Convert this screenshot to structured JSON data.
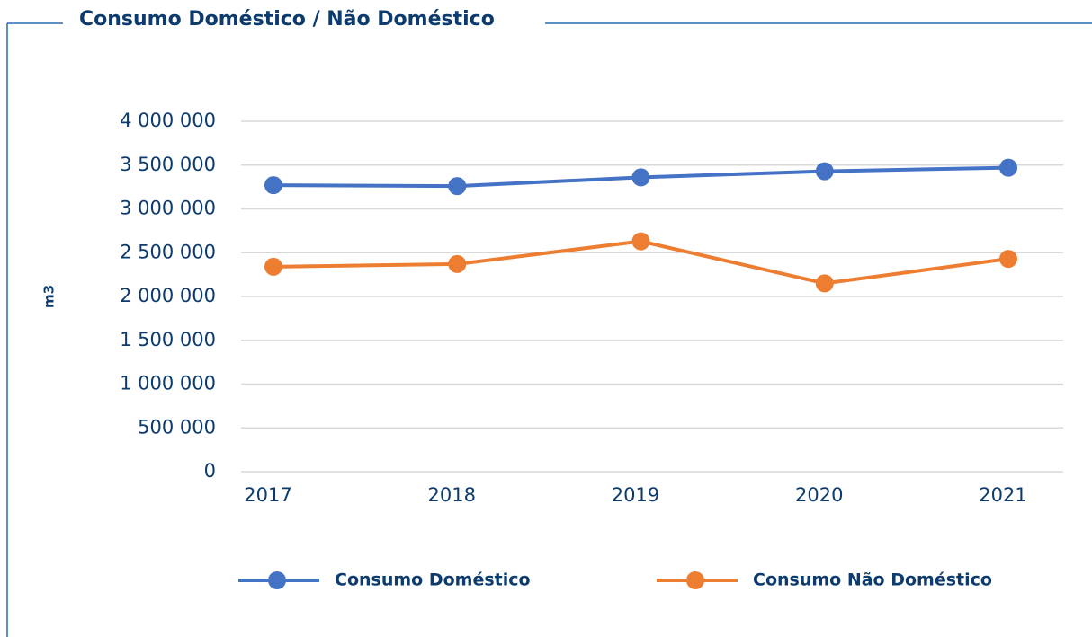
{
  "chart_data": {
    "type": "line",
    "title": "Consumo Doméstico / Não Doméstico",
    "y_label": "m3",
    "categories": [
      "2017",
      "2018",
      "2019",
      "2020",
      "2021"
    ],
    "series": [
      {
        "name": "Consumo Doméstico",
        "color": "#4472c4",
        "values": [
          3270000,
          3260000,
          3360000,
          3430000,
          3470000
        ]
      },
      {
        "name": "Consumo Não Doméstico",
        "color": "#ed7d31",
        "values": [
          2340000,
          2370000,
          2630000,
          2150000,
          2430000
        ]
      }
    ],
    "ylim": [
      0,
      4000000
    ],
    "yticks": [
      0,
      {
        "value": 500000,
        "label": "500 000"
      },
      {
        "value": 1000000,
        "label": "1 000 000"
      },
      {
        "value": 1500000,
        "label": "1 500 000"
      },
      {
        "value": 2000000,
        "label": "2 000 000"
      },
      {
        "value": 2500000,
        "label": "2 500 000"
      },
      {
        "value": 3000000,
        "label": "3 000 000"
      },
      {
        "value": 3500000,
        "label": "3 500 000"
      },
      {
        "value": 4000000,
        "label": "4 000 000"
      }
    ],
    "grid": true,
    "legend": "bottom"
  }
}
